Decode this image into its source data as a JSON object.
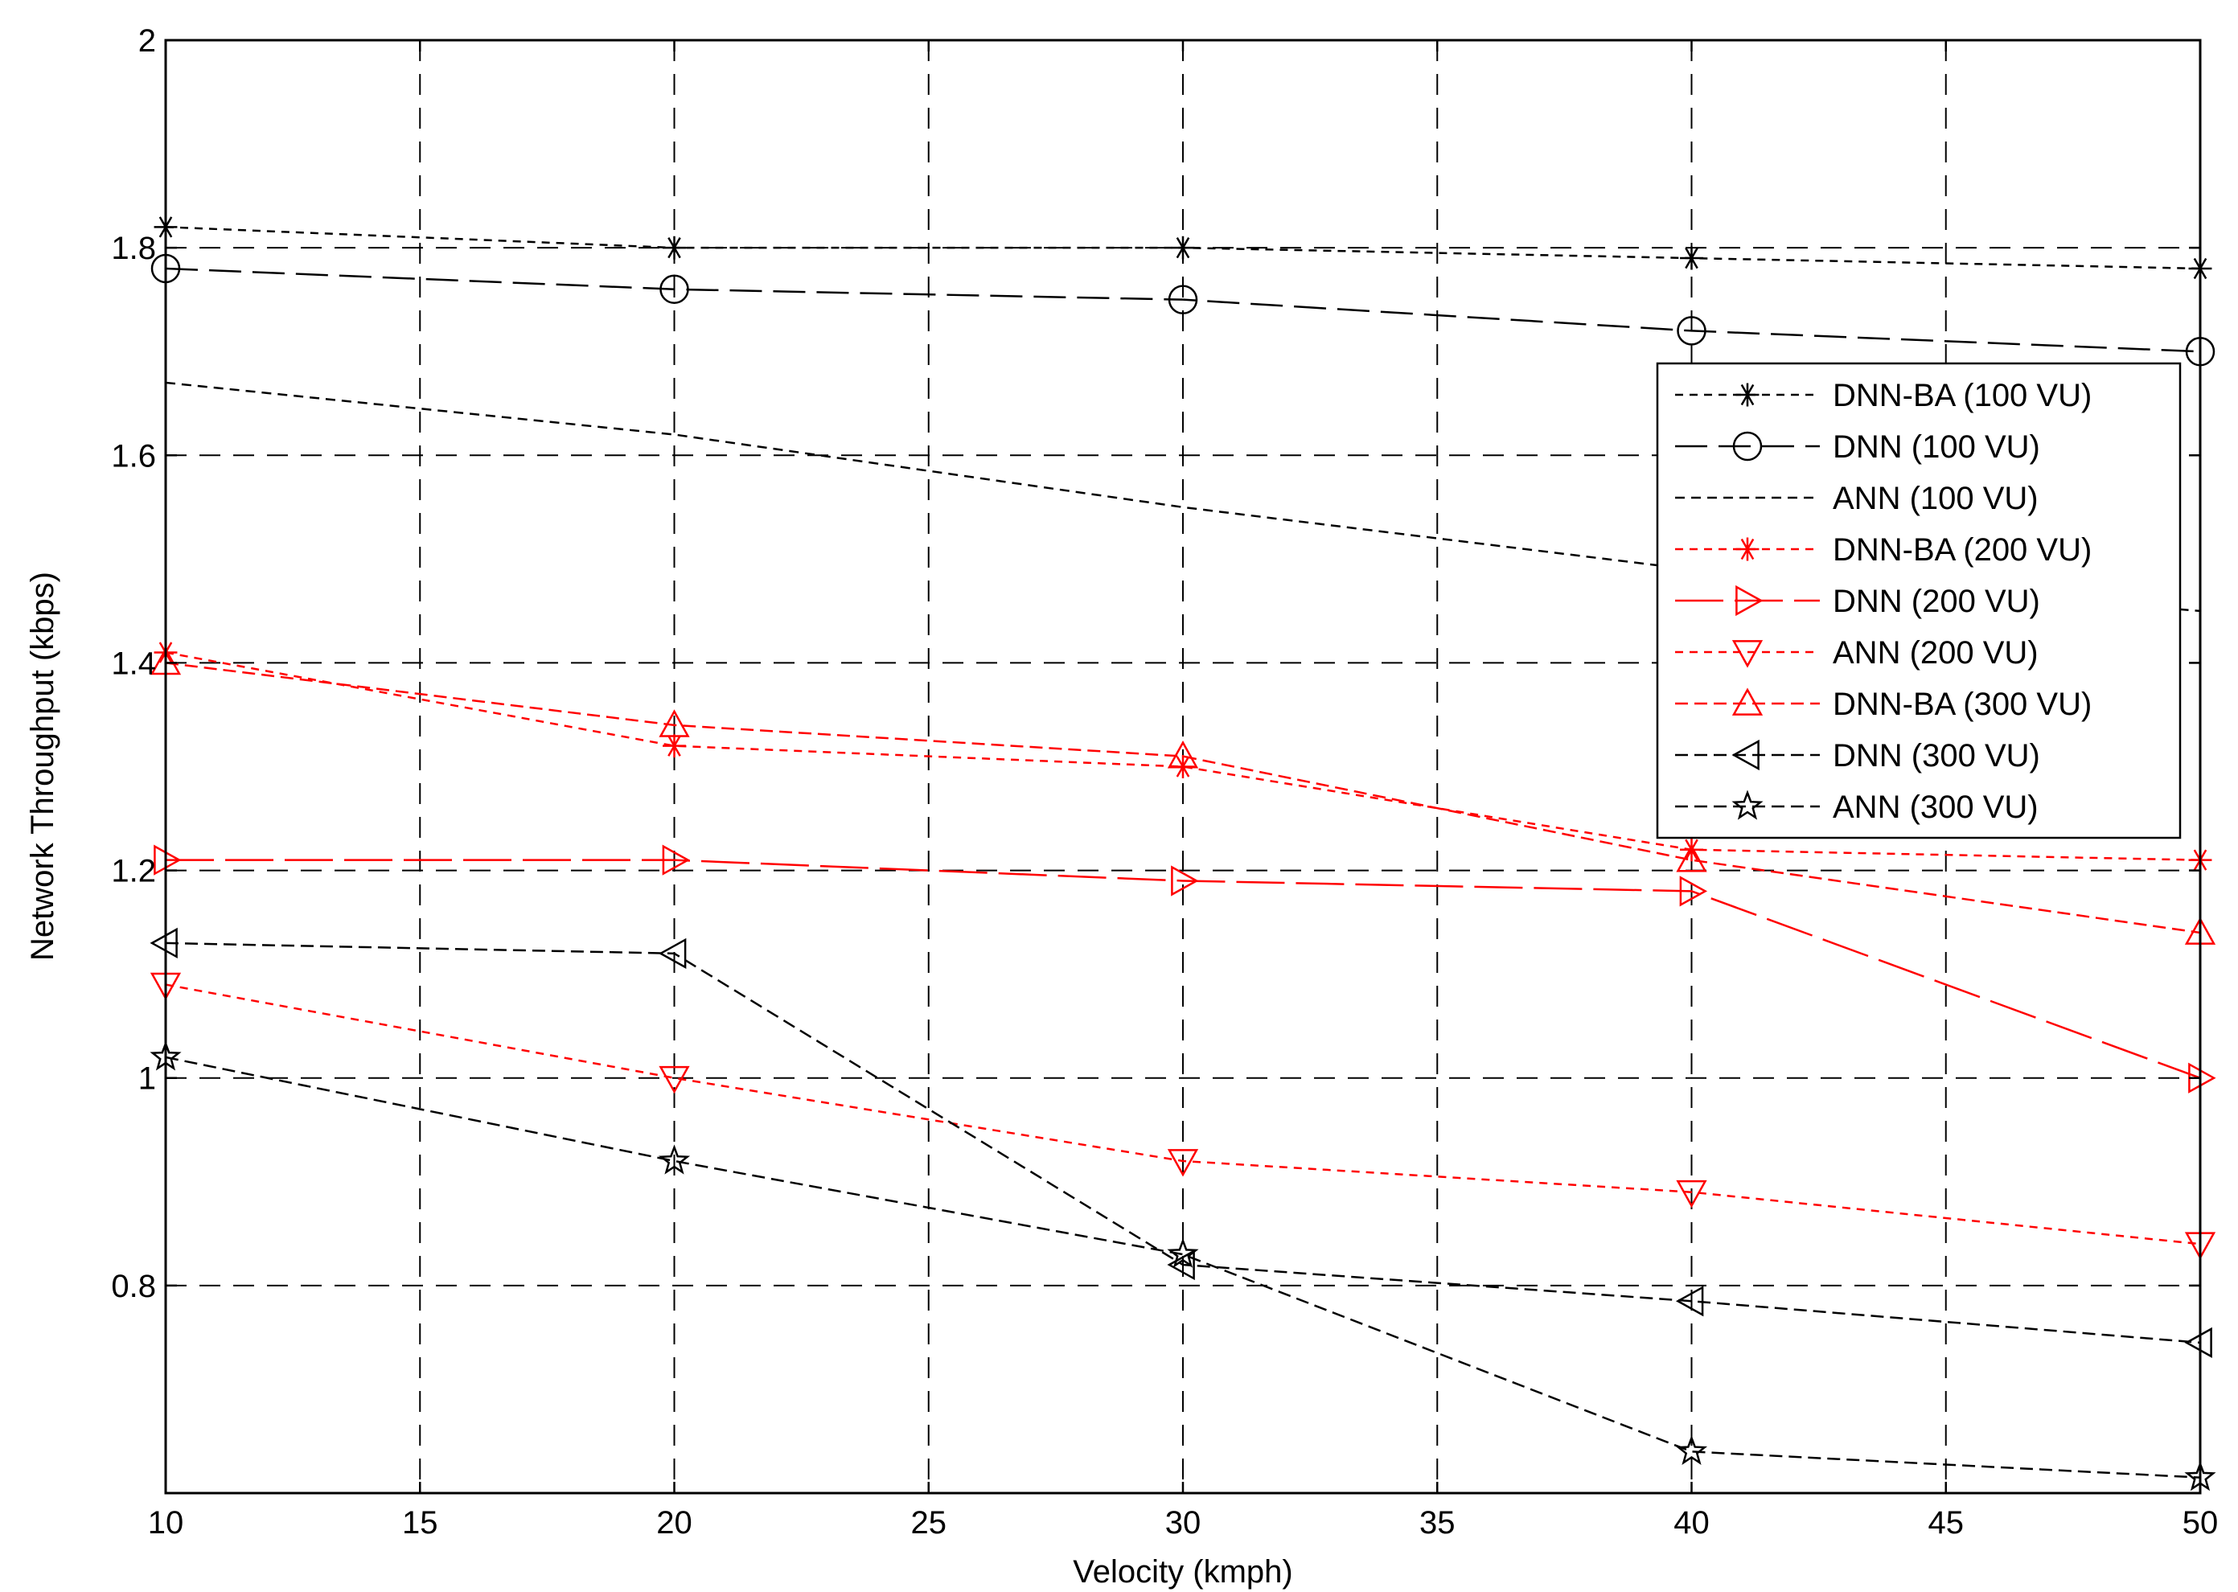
{
  "chart_data": {
    "type": "line",
    "title": "",
    "xlabel": "Velocity (kmph)",
    "ylabel": "Network Throughput (kbps)",
    "xlim": [
      10,
      50
    ],
    "ylim": [
      0.6,
      2.0
    ],
    "x_ticks": [
      10,
      15,
      20,
      25,
      30,
      35,
      40,
      45,
      50
    ],
    "y_ticks": [
      0.8,
      1,
      1.2,
      1.4,
      1.6,
      1.8,
      2
    ],
    "x_tick_labels": [
      "10",
      "15",
      "20",
      "25",
      "30",
      "35",
      "40",
      "45",
      "50"
    ],
    "y_tick_labels": [
      "0.8",
      "1",
      "1.2",
      "1.4",
      "1.6",
      "1.8",
      "2"
    ],
    "grid": true,
    "legend_position": "top-right",
    "x": [
      10,
      20,
      30,
      40,
      50
    ],
    "series": [
      {
        "name": "DNN-BA (100 VU)",
        "color": "#000000",
        "marker": "asterisk",
        "dash": "10,8",
        "values": [
          1.82,
          1.8,
          1.8,
          1.79,
          1.78
        ]
      },
      {
        "name": "DNN (100 VU)",
        "color": "#000000",
        "marker": "circle",
        "dash": "40,14",
        "values": [
          1.78,
          1.76,
          1.75,
          1.72,
          1.7
        ]
      },
      {
        "name": "ANN (100 VU)",
        "color": "#000000",
        "marker": "none",
        "dash": "12,8",
        "values": [
          1.67,
          1.62,
          1.55,
          1.49,
          1.45
        ]
      },
      {
        "name": "DNN-BA (200 VU)",
        "color": "#ff0000",
        "marker": "asterisk",
        "dash": "10,8",
        "values": [
          1.41,
          1.32,
          1.3,
          1.22,
          1.21
        ]
      },
      {
        "name": "DNN (200 VU)",
        "color": "#ff0000",
        "marker": "triangle-right",
        "dash": "60,14",
        "values": [
          1.21,
          1.21,
          1.19,
          1.18,
          1.0
        ]
      },
      {
        "name": "ANN (200 VU)",
        "color": "#ff0000",
        "marker": "triangle-down",
        "dash": "10,8",
        "values": [
          1.09,
          1.0,
          0.92,
          0.89,
          0.84
        ]
      },
      {
        "name": "DNN-BA (300 VU)",
        "color": "#ff0000",
        "marker": "triangle-up",
        "dash": "16,8",
        "values": [
          1.4,
          1.34,
          1.31,
          1.21,
          1.14
        ]
      },
      {
        "name": "DNN (300 VU)",
        "color": "#000000",
        "marker": "triangle-left",
        "dash": "16,8",
        "values": [
          1.13,
          1.12,
          0.82,
          0.785,
          0.745
        ]
      },
      {
        "name": "ANN (300 VU)",
        "color": "#000000",
        "marker": "star",
        "dash": "16,8",
        "values": [
          1.02,
          0.92,
          0.83,
          0.64,
          0.615
        ]
      }
    ]
  }
}
